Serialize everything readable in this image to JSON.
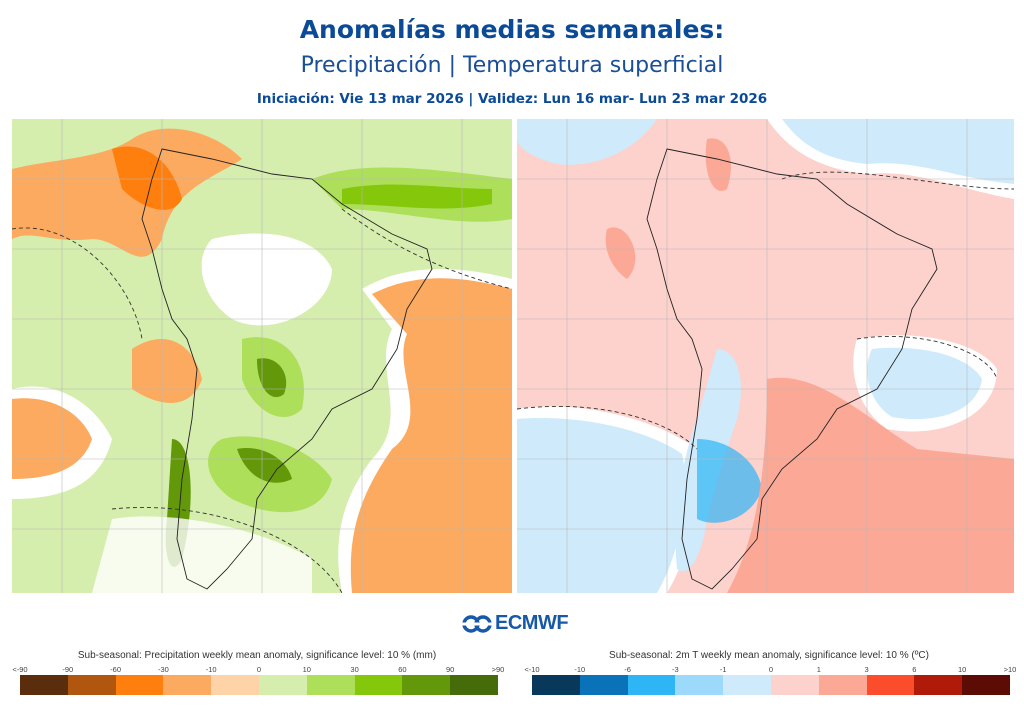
{
  "header": {
    "title": "Anomalías medias semanales:",
    "subtitle": "Precipitación | Temperatura superficial",
    "dates": "Iniciación: Vie 13 mar 2026 | Validez: Lun 16 mar- Lun 23 mar 2026"
  },
  "logo": {
    "text": "ECMWF",
    "color": "#1559a8"
  },
  "maps": {
    "precipitation": {
      "region": "South America",
      "variable": "precipitation anomaly"
    },
    "temperature": {
      "region": "South America",
      "variable": "2m temperature anomaly"
    }
  },
  "legends": {
    "precipitation": {
      "title": "Sub-seasonal: Precipitation weekly mean anomaly, significance level: 10 % (mm)",
      "ticks": [
        "<-90",
        "-90",
        "-60",
        "-30",
        "-10",
        "0",
        "10",
        "30",
        "60",
        "90",
        ">90"
      ],
      "colors": [
        "#5a2d0c",
        "#b0560f",
        "#ff7f0e",
        "#fbaa5f",
        "#fdd3a7",
        "#d5eeae",
        "#addf5a",
        "#84c70b",
        "#62980a",
        "#466c0a"
      ]
    },
    "temperature": {
      "title": "Sub-seasonal: 2m T weekly mean anomaly, significance level: 10 % (ºC)",
      "ticks": [
        "<-10",
        "-10",
        "-6",
        "-3",
        "-1",
        "0",
        "1",
        "3",
        "6",
        "10",
        ">10"
      ],
      "colors": [
        "#08385a",
        "#0a72b8",
        "#2db5f5",
        "#9dd9fb",
        "#cfeafb",
        "#fdd1cc",
        "#fca896",
        "#fb4d2c",
        "#b01a09",
        "#5c0c04"
      ]
    }
  }
}
